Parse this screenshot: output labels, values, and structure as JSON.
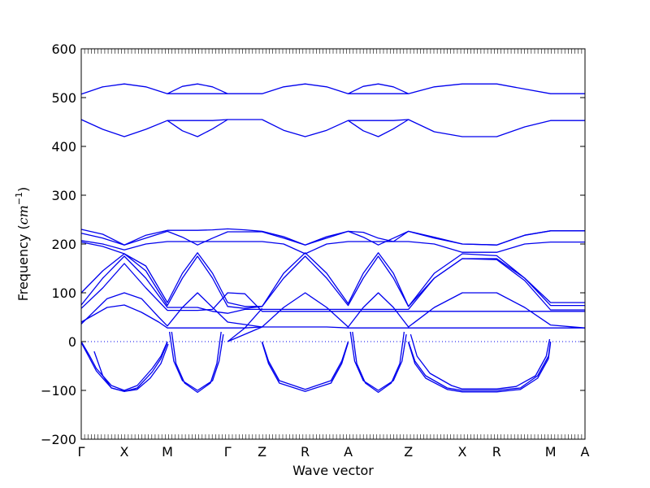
{
  "chart_data": {
    "type": "line",
    "title": "",
    "xlabel": "Wave vector",
    "ylabel_prefix": "Frequency (",
    "ylabel_unit_base": "cm",
    "ylabel_unit_exp": "−1",
    "ylabel_suffix": ")",
    "ylim": [
      -200,
      600
    ],
    "yticks": [
      -200,
      -100,
      0,
      100,
      200,
      300,
      400,
      500,
      600
    ],
    "ytick_labels": [
      "−200",
      "−100",
      "0",
      "100",
      "200",
      "300",
      "400",
      "500",
      "600"
    ],
    "xlim": [
      0,
      11.7
    ],
    "kpoints": [
      {
        "label": "Γ",
        "x": 0
      },
      {
        "label": "X",
        "x": 1.0
      },
      {
        "label": "M",
        "x": 2.0
      },
      {
        "label": "Γ",
        "x": 3.4
      },
      {
        "label": "Z",
        "x": 4.2
      },
      {
        "label": "R",
        "x": 5.2
      },
      {
        "label": "A",
        "x": 6.2
      },
      {
        "label": "Z",
        "x": 7.6
      },
      {
        "label": "X",
        "x": 8.85
      },
      {
        "label": "R",
        "x": 9.65
      },
      {
        "label": "M",
        "x": 10.9
      },
      {
        "label": "A",
        "x": 11.7
      }
    ],
    "zero_line": true,
    "line_color": "#0000ee",
    "grid": false,
    "legend": "none",
    "series": [
      {
        "x": [
          0,
          0.5,
          1,
          1.5,
          2,
          2.5,
          3,
          3.4,
          4.2,
          4.7,
          5.2,
          5.7,
          6.2,
          6.7,
          7.2,
          7.6,
          8.2,
          8.85,
          9.65,
          10.9,
          11.7
        ],
        "y": [
          507,
          522,
          528,
          522,
          508,
          508,
          508,
          508,
          508,
          522,
          528,
          522,
          508,
          508,
          508,
          508,
          522,
          528,
          528,
          508,
          508
        ]
      },
      {
        "x": [
          2,
          2.35,
          2.7,
          3.05,
          3.4
        ],
        "y": [
          508,
          523,
          528,
          522,
          508
        ]
      },
      {
        "x": [
          6.2,
          6.55,
          6.9,
          7.25,
          7.6
        ],
        "y": [
          508,
          523,
          528,
          522,
          508
        ]
      },
      {
        "x": [
          0,
          0.5,
          1,
          1.5,
          2,
          2.35,
          2.7,
          3.05,
          3.4,
          4.2,
          4.7,
          5.2,
          5.7,
          6.2,
          6.55,
          6.9,
          7.25,
          7.6,
          8.2,
          8.85,
          9.65,
          10.3,
          10.9,
          11.7
        ],
        "y": [
          455,
          435,
          420,
          435,
          453,
          453,
          453,
          453,
          455,
          455,
          433,
          420,
          433,
          453,
          453,
          453,
          453,
          455,
          430,
          420,
          420,
          440,
          453,
          453
        ]
      },
      {
        "x": [
          2,
          2.35,
          2.7,
          3.05,
          3.4
        ],
        "y": [
          453,
          432,
          420,
          436,
          455
        ]
      },
      {
        "x": [
          6.2,
          6.55,
          6.9,
          7.25,
          7.6
        ],
        "y": [
          453,
          432,
          420,
          436,
          455
        ]
      },
      {
        "x": [
          0,
          0.5,
          1,
          1.5,
          2,
          2.35,
          2.7,
          3.05,
          3.4,
          3.8,
          4.2,
          4.7,
          5.2,
          5.7,
          6.2,
          6.55,
          6.9,
          7.25,
          7.6,
          8.2,
          8.85,
          9.65,
          10.3,
          10.9,
          11.7
        ],
        "y": [
          230,
          220,
          198,
          218,
          228,
          228,
          228,
          229,
          231,
          229,
          226,
          215,
          198,
          215,
          226,
          224,
          212,
          205,
          226,
          214,
          200,
          198,
          218,
          227,
          227
        ]
      },
      {
        "x": [
          0,
          0.5,
          1,
          1.5,
          2,
          2.35,
          2.7,
          3.05,
          3.4,
          3.8,
          4.2,
          4.7,
          5.2,
          5.7,
          6.2,
          6.55,
          6.9,
          7.25,
          7.6,
          8.2,
          8.85,
          9.65,
          10.3,
          10.9,
          11.7
        ],
        "y": [
          222,
          212,
          198,
          212,
          226,
          214,
          198,
          212,
          225,
          225,
          225,
          212,
          198,
          212,
          226,
          214,
          198,
          212,
          226,
          212,
          200,
          198,
          218,
          227,
          227
        ]
      },
      {
        "x": [
          0,
          0.5,
          1,
          1.5,
          2,
          2.35,
          2.7,
          3.05,
          3.4,
          3.8,
          4.2,
          4.7,
          5.2,
          5.7,
          6.2,
          6.55,
          6.9,
          7.25,
          7.6,
          8.2,
          8.85,
          9.65,
          10.3,
          10.9,
          11.7
        ],
        "y": [
          207,
          200,
          188,
          200,
          205,
          205,
          205,
          205,
          205,
          205,
          205,
          200,
          180,
          200,
          205,
          205,
          205,
          205,
          205,
          200,
          183,
          183,
          200,
          204,
          204
        ]
      },
      {
        "x": [
          0,
          0.5,
          1,
          1.5,
          2,
          2.35,
          2.7,
          3.05,
          3.4,
          3.8,
          4.2,
          4.7,
          5.2,
          5.7,
          6.2,
          6.55,
          6.9,
          7.25,
          7.6,
          8.2,
          8.85,
          9.65,
          10.3,
          10.9,
          11.7
        ],
        "y": [
          204,
          195,
          180,
          155,
          80,
          140,
          182,
          140,
          80,
          72,
          72,
          140,
          182,
          140,
          78,
          140,
          182,
          140,
          72,
          140,
          180,
          176,
          130,
          80,
          80
        ]
      },
      {
        "x": [
          0,
          0.5,
          1,
          1.5,
          2,
          2.35,
          2.7,
          3.05,
          3.4,
          3.8,
          4.2,
          4.7,
          5.2,
          5.7,
          6.2,
          6.55,
          6.9,
          7.25,
          7.6,
          8.2,
          8.85,
          9.65,
          10.3,
          10.9,
          11.7
        ],
        "y": [
          100,
          145,
          180,
          145,
          74,
          130,
          175,
          130,
          72,
          68,
          72,
          130,
          175,
          130,
          74,
          130,
          175,
          130,
          72,
          130,
          170,
          170,
          130,
          74,
          74
        ]
      },
      {
        "x": [
          0,
          0.5,
          1,
          1.5,
          2,
          2.35,
          2.7,
          3.05,
          3.4,
          3.8,
          4.2,
          4.7,
          5.2,
          5.7,
          6.2,
          6.55,
          6.9,
          7.25,
          7.6,
          8.2,
          8.85,
          9.65,
          10.3,
          10.9,
          11.7
        ],
        "y": [
          75,
          130,
          175,
          130,
          70,
          70,
          70,
          62,
          58,
          66,
          66,
          66,
          66,
          66,
          66,
          66,
          66,
          66,
          66,
          130,
          170,
          168,
          125,
          65,
          65
        ]
      },
      {
        "x": [
          0,
          0.5,
          1,
          1.5,
          2,
          2.35,
          2.7,
          3.05,
          3.4,
          3.8,
          4.2,
          4.7,
          5.2,
          5.7,
          6.2,
          6.55,
          6.9,
          7.25,
          7.6,
          8.2,
          8.85,
          9.65,
          10.3,
          10.9,
          11.7
        ],
        "y": [
          68,
          110,
          160,
          110,
          64,
          64,
          64,
          66,
          100,
          98,
          62,
          62,
          62,
          62,
          62,
          62,
          62,
          62,
          62,
          62,
          62,
          62,
          62,
          62,
          62
        ]
      },
      {
        "x": [
          0,
          0.3,
          0.6,
          1,
          1.4,
          1.8,
          2,
          2.35,
          2.7,
          3.05,
          3.4,
          3.8,
          4.2,
          4.7,
          5.2,
          5.7,
          6.2,
          6.55,
          6.9,
          7.25,
          7.6,
          8.2,
          8.85,
          9.65,
          10.3,
          10.9,
          11.7
        ],
        "y": [
          36,
          62,
          88,
          100,
          88,
          50,
          32,
          70,
          100,
          70,
          40,
          35,
          30,
          70,
          100,
          70,
          30,
          70,
          100,
          70,
          30,
          70,
          100,
          100,
          70,
          34,
          28
        ]
      },
      {
        "x": [
          0,
          0.3,
          0.6,
          1,
          1.4,
          1.8,
          2,
          2.35,
          2.7,
          3.05,
          3.4,
          3.8,
          4.2,
          4.7,
          5.2,
          5.7,
          6.2,
          6.55,
          6.9,
          7.25,
          7.6,
          8.2,
          8.85,
          9.65,
          10.3,
          10.9,
          11.7
        ],
        "y": [
          40,
          55,
          70,
          75,
          60,
          40,
          28,
          28,
          28,
          28,
          28,
          28,
          30,
          30,
          30,
          30,
          28,
          28,
          28,
          28,
          28,
          28,
          28,
          28,
          28,
          28,
          28
        ]
      },
      {
        "x": [
          0,
          0.2,
          0.35,
          0.7,
          1,
          1.3,
          1.65,
          1.85,
          2
        ],
        "y": [
          0,
          -30,
          -55,
          -90,
          -100,
          -90,
          -55,
          -30,
          0
        ]
      },
      {
        "x": [
          0,
          0.2,
          0.35,
          0.7,
          1,
          1.3,
          1.65,
          1.85,
          2
        ],
        "y": [
          -2,
          -35,
          -60,
          -95,
          -102,
          -95,
          -62,
          -35,
          -2
        ]
      },
      {
        "x": [
          0.3,
          0.5,
          0.7,
          1,
          1.3,
          1.6,
          1.85,
          2.02
        ],
        "y": [
          -20,
          -70,
          -95,
          -102,
          -98,
          -75,
          -45,
          -5
        ]
      },
      {
        "x": [
          2.05,
          2.15,
          2.35,
          2.7,
          3.05,
          3.2,
          3.3
        ],
        "y": [
          20,
          -40,
          -80,
          -100,
          -80,
          -40,
          15
        ]
      },
      {
        "x": [
          2.1,
          2.2,
          2.4,
          2.7,
          3.0,
          3.15,
          3.25
        ],
        "y": [
          20,
          -45,
          -85,
          -104,
          -85,
          -45,
          20
        ]
      },
      {
        "x": [
          3.4,
          3.8,
          4.2
        ],
        "y": [
          0,
          15,
          30
        ]
      },
      {
        "x": [
          3.4,
          3.8,
          4.2
        ],
        "y": [
          0,
          28,
          68
        ]
      },
      {
        "x": [
          4.2,
          4.35,
          4.6,
          5.2,
          5.8,
          6.05,
          6.2
        ],
        "y": [
          0,
          -40,
          -80,
          -98,
          -80,
          -40,
          0
        ]
      },
      {
        "x": [
          4.2,
          4.35,
          4.6,
          5.2,
          5.8,
          6.05,
          6.2
        ],
        "y": [
          -2,
          -45,
          -85,
          -102,
          -85,
          -45,
          -2
        ]
      },
      {
        "x": [
          6.25,
          6.35,
          6.55,
          6.9,
          7.25,
          7.45,
          7.55
        ],
        "y": [
          20,
          -40,
          -80,
          -100,
          -80,
          -40,
          15
        ]
      },
      {
        "x": [
          6.3,
          6.4,
          6.6,
          6.9,
          7.2,
          7.4,
          7.5
        ],
        "y": [
          20,
          -45,
          -85,
          -104,
          -85,
          -45,
          20
        ]
      },
      {
        "x": [
          7.6,
          7.75,
          8.0,
          8.5,
          8.85,
          9.65,
          10.2,
          10.6,
          10.85,
          10.9
        ],
        "y": [
          0,
          -40,
          -70,
          -95,
          -100,
          -100,
          -95,
          -70,
          -30,
          0
        ]
      },
      {
        "x": [
          7.6,
          7.75,
          8.0,
          8.5,
          8.85,
          9.65,
          10.2,
          10.6,
          10.85,
          10.9
        ],
        "y": [
          -2,
          -45,
          -75,
          -98,
          -103,
          -103,
          -98,
          -75,
          -35,
          -2
        ]
      },
      {
        "x": [
          7.65,
          7.8,
          8.1,
          8.6,
          8.85,
          9.65,
          10.1,
          10.55,
          10.8,
          10.88
        ],
        "y": [
          15,
          -30,
          -65,
          -90,
          -97,
          -97,
          -92,
          -70,
          -30,
          5
        ]
      }
    ]
  }
}
